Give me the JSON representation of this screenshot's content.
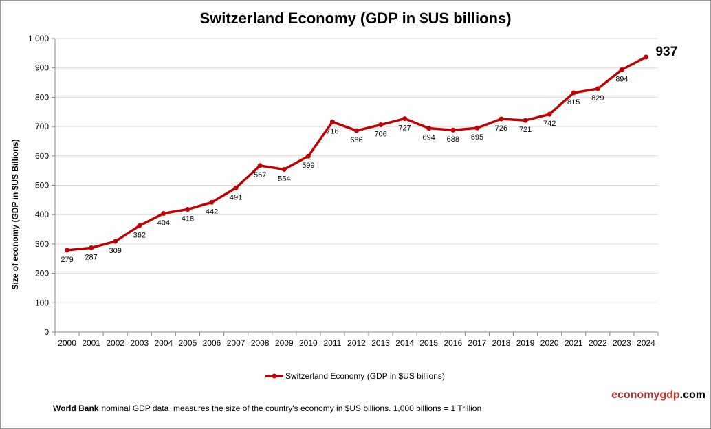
{
  "chart_data": {
    "type": "line",
    "title": "Switzerland Economy (GDP in $US billions)",
    "y_label": "Size of economy (GDP in $US Billions)",
    "categories": [
      "2000",
      "2001",
      "2002",
      "2003",
      "2004",
      "2005",
      "2006",
      "2007",
      "2008",
      "2009",
      "2010",
      "2011",
      "2012",
      "2013",
      "2014",
      "2015",
      "2016",
      "2017",
      "2018",
      "2019",
      "2020",
      "2021",
      "2022",
      "2023",
      "2024"
    ],
    "series": [
      {
        "name": "Switzerland Economy (GDP in $US billions)",
        "color": "#c00000",
        "values": [
          279,
          287,
          309,
          362,
          404,
          418,
          442,
          491,
          567,
          554,
          599,
          716,
          686,
          706,
          727,
          694,
          688,
          695,
          726,
          721,
          742,
          815,
          829,
          894,
          937
        ]
      }
    ],
    "ylim": [
      0,
      1000
    ],
    "yticks": [
      0,
      100,
      200,
      300,
      400,
      500,
      600,
      700,
      800,
      900,
      {
        "value": 1000,
        "label": "1,000"
      }
    ],
    "grid": true,
    "legend": "bottom"
  },
  "footer": {
    "source_bold": "World Bank",
    "source_text": "nominal GDP data  measures the size of the country's economy in $US billions. 1,000 billions = 1 Trillion",
    "brand_a": "economy",
    "brand_b": "gdp",
    "brand_c": ".com"
  }
}
